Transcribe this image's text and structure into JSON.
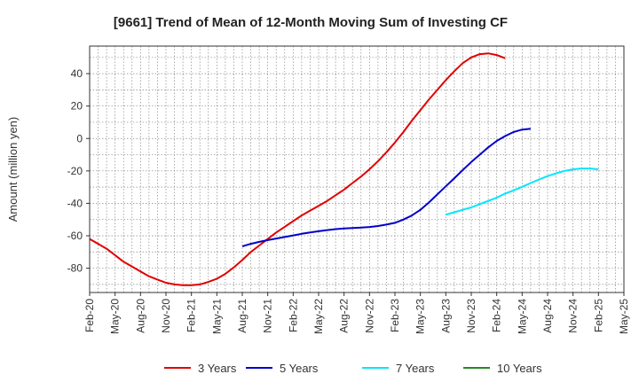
{
  "chart_data": {
    "type": "line",
    "title": "[9661]  Trend of Mean of 12-Month Moving Sum of Investing CF",
    "xlabel": "",
    "ylabel": "Amount (million yen)",
    "ylim": [
      -95,
      57
    ],
    "yticks": [
      -80,
      -60,
      -40,
      -20,
      0,
      20,
      40
    ],
    "x_tick_labels": [
      "Feb-20",
      "May-20",
      "Aug-20",
      "Nov-20",
      "Feb-21",
      "May-21",
      "Aug-21",
      "Nov-21",
      "Feb-22",
      "May-22",
      "Aug-22",
      "Nov-22",
      "Feb-23",
      "May-23",
      "Aug-23",
      "Nov-23",
      "Feb-24",
      "May-24",
      "Aug-24",
      "Nov-24",
      "Feb-25",
      "May-25"
    ],
    "grid": true,
    "legend_position": "bottom",
    "series": [
      {
        "name": "3 Years",
        "color": "#e00000",
        "start_month_index": 0,
        "values": [
          -62,
          -65,
          -68,
          -72,
          -76,
          -79,
          -82,
          -85,
          -87,
          -89,
          -90,
          -90.5,
          -90.5,
          -90,
          -88.5,
          -86.5,
          -83.5,
          -79.5,
          -75,
          -70,
          -66,
          -62,
          -58,
          -54.5,
          -51,
          -47.5,
          -44.5,
          -41.5,
          -38.5,
          -35,
          -31.5,
          -27.5,
          -23.5,
          -19,
          -14,
          -8.5,
          -2.5,
          4,
          11,
          17.5,
          24,
          30,
          36,
          41.5,
          46.5,
          50,
          52,
          52.5,
          51.5,
          49.5
        ]
      },
      {
        "name": "5 Years",
        "color": "#0000cc",
        "start_month_index": 18,
        "values": [
          -66.5,
          -65,
          -63.8,
          -62.7,
          -61.7,
          -60.8,
          -59.8,
          -58.8,
          -58,
          -57.2,
          -56.5,
          -55.9,
          -55.5,
          -55.2,
          -55,
          -54.6,
          -54,
          -53.1,
          -52,
          -50,
          -47.5,
          -44,
          -39.5,
          -34.5,
          -29.5,
          -24.5,
          -19.5,
          -14.5,
          -10,
          -5.5,
          -1.5,
          1.5,
          4,
          5.5,
          6
        ]
      },
      {
        "name": "7 Years",
        "color": "#00e5ff",
        "start_month_index": 42,
        "values": [
          -47,
          -45.5,
          -44,
          -42.5,
          -40.5,
          -38.5,
          -36.5,
          -34,
          -32,
          -29.8,
          -27.5,
          -25.3,
          -23.2,
          -21.5,
          -20,
          -19,
          -18.5,
          -18.5,
          -19
        ]
      },
      {
        "name": "10 Years",
        "color": "#228b22",
        "start_month_index": 0,
        "values": []
      }
    ]
  }
}
